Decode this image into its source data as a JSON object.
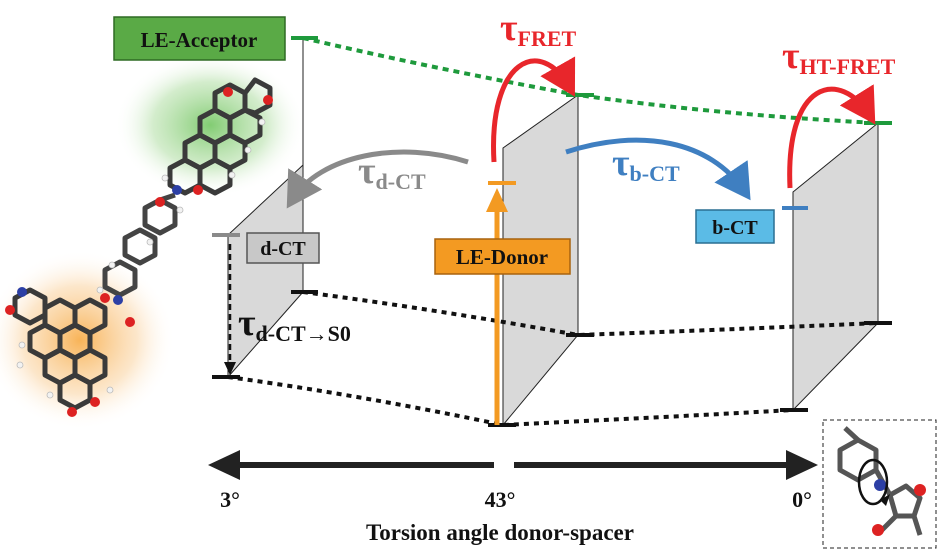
{
  "boxes": {
    "le_acceptor": "LE-Acceptor",
    "le_donor": "LE-Donor",
    "d_ct": "d-CT",
    "b_ct": "b-CT"
  },
  "rates": {
    "tau": "τ",
    "fret_sub": "FRET",
    "ht_fret_sub": "HT-FRET",
    "d_ct_sub": "d-CT",
    "b_ct_sub": "b-CT",
    "d_ct_s0_sub": "d-CT→S0"
  },
  "axis": {
    "left_angle": "3°",
    "center_angle": "43°",
    "right_angle": "0°",
    "label": "Torsion angle donor-spacer"
  },
  "colors": {
    "acceptor_green": "#5aaa46",
    "acceptor_dots": "#1e9a3c",
    "fret_red": "#e8262b",
    "bct_blue": "#3f7fc1",
    "bct_box": "#5bbbe6",
    "donor_orange": "#f39a22",
    "dct_gray": "#8a8a8a",
    "dct_box": "#c8c8c8",
    "plane_gray": "#d9d9d9"
  },
  "icons": [
    "donor-spacer-acceptor-molecule-icon",
    "torsion-rotation-inset-icon"
  ]
}
